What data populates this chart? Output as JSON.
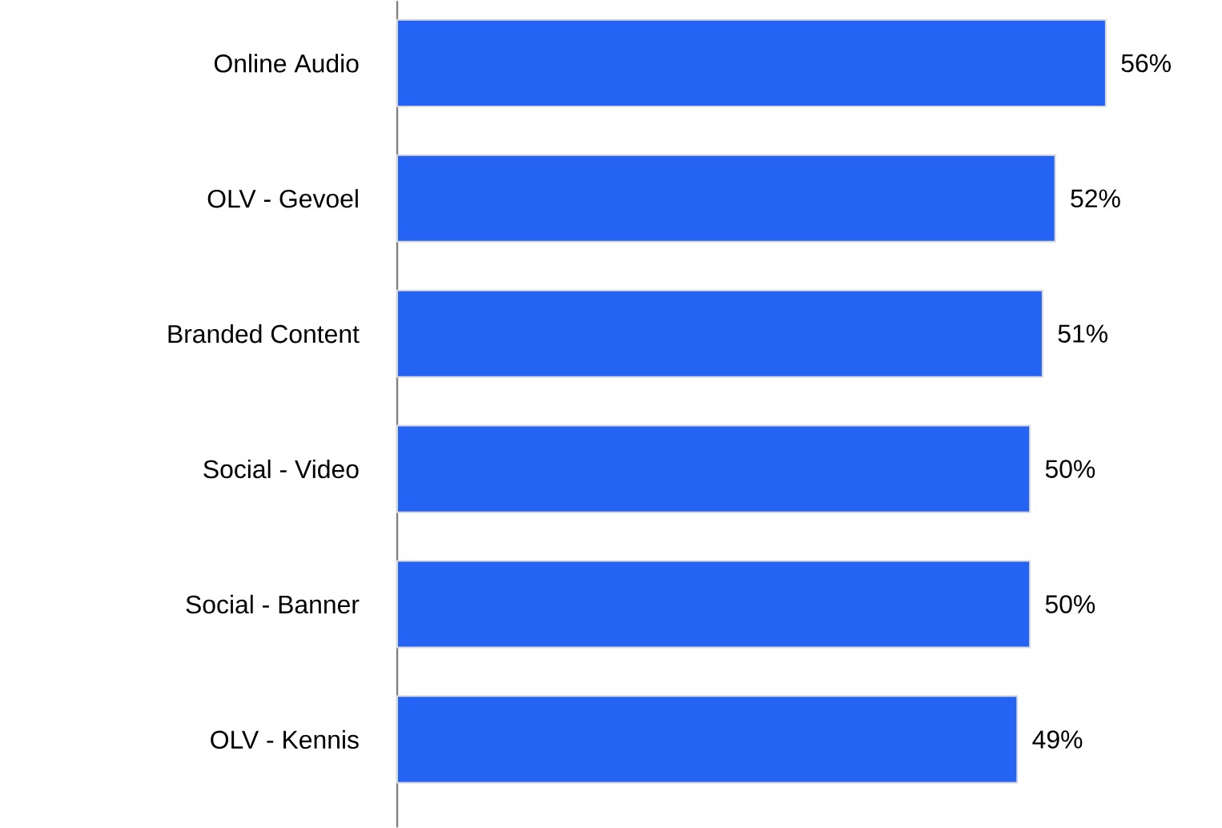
{
  "chart_data": {
    "type": "bar",
    "orientation": "horizontal",
    "categories": [
      "Online Audio",
      "OLV - Gevoel",
      "Branded Content",
      "Social - Video",
      "Social - Banner",
      "OLV - Kennis"
    ],
    "values": [
      56,
      52,
      51,
      50,
      50,
      49
    ],
    "value_labels": [
      "56%",
      "52%",
      "51%",
      "50%",
      "50%",
      "49%"
    ],
    "color": "#2563f5"
  }
}
